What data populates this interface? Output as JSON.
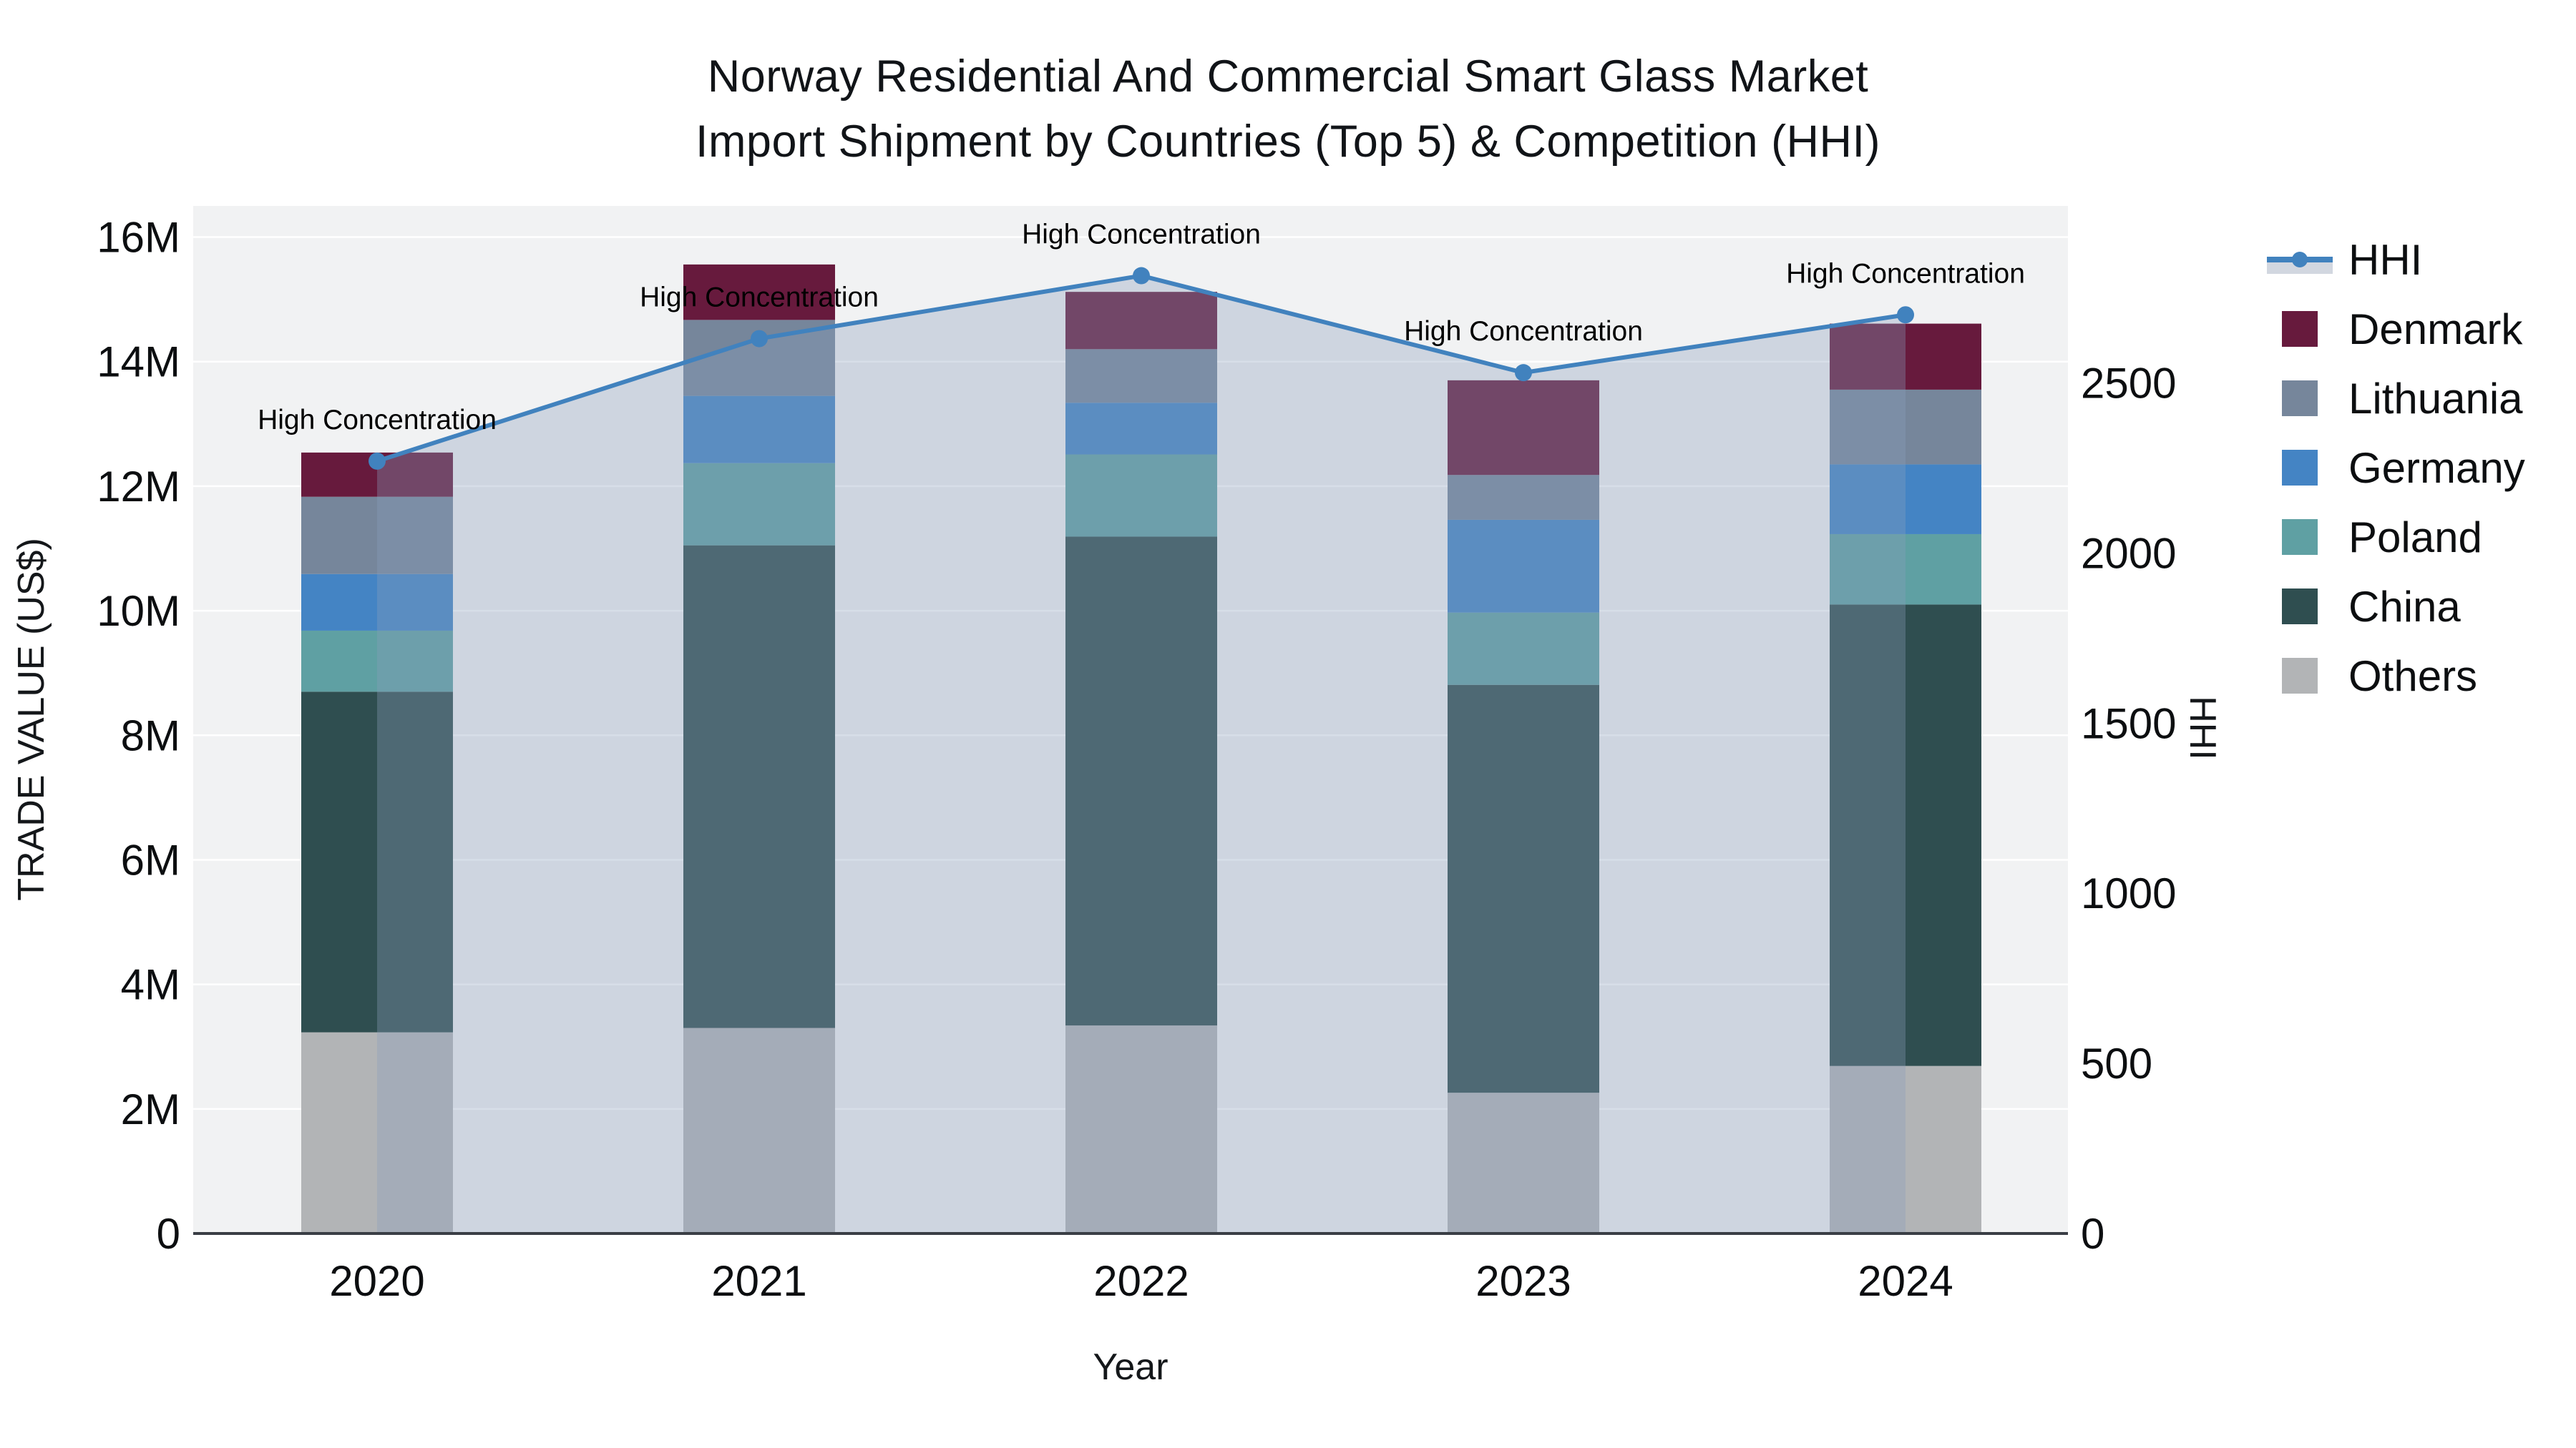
{
  "title": {
    "line1": "Norway Residential And Commercial Smart Glass Market",
    "line2": "Import Shipment by Countries (Top 5) & Competition (HHI)"
  },
  "axes": {
    "y_left_title": "TRADE VALUE (US$)",
    "y_right_title": "HHI",
    "x_title": "Year"
  },
  "legend": {
    "position": "right-top",
    "items": [
      {
        "label": "HHI",
        "type": "line",
        "color": "#4182BE",
        "band_color": "#D2D7E0"
      },
      {
        "label": "Denmark",
        "type": "swatch",
        "color": "#671A3D"
      },
      {
        "label": "Lithuania",
        "type": "swatch",
        "color": "#76869B"
      },
      {
        "label": "Germany",
        "type": "swatch",
        "color": "#4484C4"
      },
      {
        "label": "Poland",
        "type": "swatch",
        "color": "#5FA0A3"
      },
      {
        "label": "China",
        "type": "swatch",
        "color": "#2F4E50"
      },
      {
        "label": "Others",
        "type": "swatch",
        "color": "#B2B4B6"
      }
    ]
  },
  "chart_data": {
    "type": "bar",
    "subtype": "stacked-bars-with-line-overlay",
    "title": "Norway Residential And Commercial Smart Glass Market Import Shipment by Countries (Top 5) & Competition (HHI)",
    "categories": [
      "2020",
      "2021",
      "2022",
      "2023",
      "2024"
    ],
    "series": [
      {
        "name": "Others",
        "axis": "left",
        "unit": "M US$",
        "color": "#B2B4B6",
        "values": [
          3.23,
          3.3,
          3.34,
          2.26,
          2.69
        ]
      },
      {
        "name": "China",
        "axis": "left",
        "unit": "M US$",
        "color": "#2F4E50",
        "values": [
          5.47,
          7.75,
          7.85,
          6.55,
          7.41
        ]
      },
      {
        "name": "Poland",
        "axis": "left",
        "unit": "M US$",
        "color": "#5FA0A3",
        "values": [
          0.98,
          1.32,
          1.32,
          1.16,
          1.13
        ]
      },
      {
        "name": "Germany",
        "axis": "left",
        "unit": "M US$",
        "color": "#4484C4",
        "values": [
          0.91,
          1.08,
          0.83,
          1.49,
          1.12
        ]
      },
      {
        "name": "Lithuania",
        "axis": "left",
        "unit": "M US$",
        "color": "#76869B",
        "values": [
          1.24,
          1.22,
          0.86,
          0.72,
          1.2
        ]
      },
      {
        "name": "Denmark",
        "axis": "left",
        "unit": "M US$",
        "color": "#671A3D",
        "values": [
          0.71,
          0.89,
          0.92,
          1.52,
          1.06
        ]
      }
    ],
    "line_series": {
      "name": "HHI",
      "axis": "right",
      "color": "#4182BE",
      "area_fill": "rgba(139,157,188,0.34)",
      "values": [
        2270,
        2630,
        2815,
        2530,
        2700
      ]
    },
    "annotations": [
      {
        "text": "High Concentration",
        "category": "2020"
      },
      {
        "text": "High Concentration",
        "category": "2021"
      },
      {
        "text": "High Concentration",
        "category": "2022"
      },
      {
        "text": "High Concentration",
        "category": "2023"
      },
      {
        "text": "High Concentration",
        "category": "2024"
      }
    ],
    "xlabel": "Year",
    "ylabel": "TRADE VALUE (US$)",
    "ylabel_right": "HHI",
    "y_left": {
      "ticks": [
        "0",
        "2M",
        "4M",
        "6M",
        "8M",
        "10M",
        "12M",
        "14M",
        "16M"
      ],
      "tick_values_musd": [
        0,
        2,
        4,
        6,
        8,
        10,
        12,
        14,
        16
      ],
      "range_musd": [
        0,
        16.5
      ]
    },
    "y_right": {
      "ticks": [
        "0",
        "500",
        "1000",
        "1500",
        "2000",
        "2500"
      ],
      "tick_values": [
        0,
        500,
        1000,
        1500,
        2000,
        2500
      ],
      "range": [
        0,
        3020
      ]
    },
    "grid": "horizontal",
    "plot_bg": "#F1F2F3",
    "grid_color": "#FFFFFF",
    "axis_line_color": "#3A3E45",
    "legend_position": "right-top"
  }
}
